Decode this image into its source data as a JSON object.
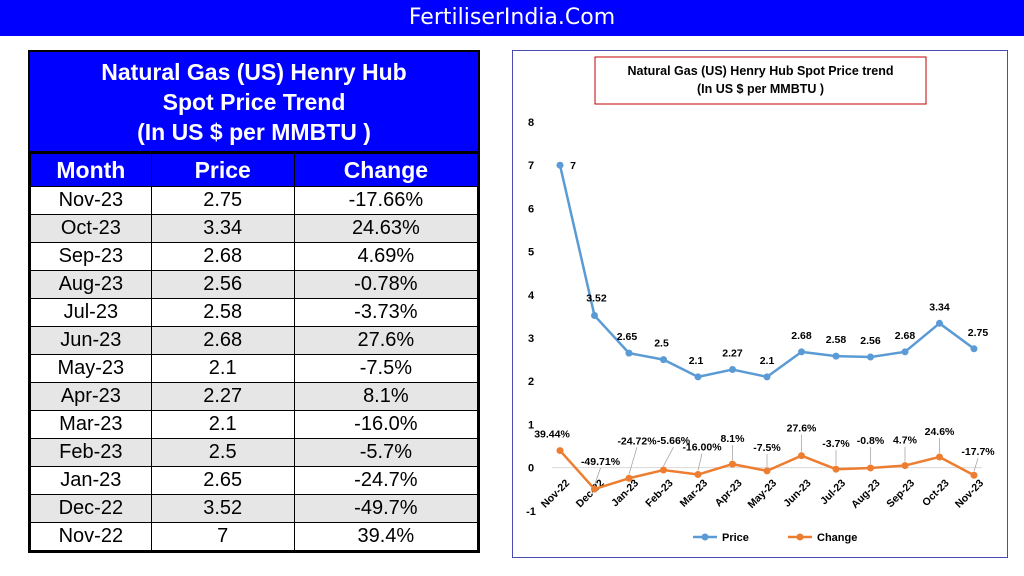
{
  "banner": {
    "text": "FertiliserIndia.Com"
  },
  "table": {
    "title_lines": [
      "Natural Gas (US) Henry Hub",
      "Spot Price Trend",
      "(In US $ per MMBTU )"
    ],
    "headers": [
      "Month",
      "Price",
      "Change"
    ],
    "rows": [
      [
        "Nov-23",
        "2.75",
        "-17.66%"
      ],
      [
        "Oct-23",
        "3.34",
        "24.63%"
      ],
      [
        "Sep-23",
        "2.68",
        "4.69%"
      ],
      [
        "Aug-23",
        "2.56",
        "-0.78%"
      ],
      [
        "Jul-23",
        "2.58",
        "-3.73%"
      ],
      [
        "Jun-23",
        "2.68",
        "27.6%"
      ],
      [
        "May-23",
        "2.1",
        "-7.5%"
      ],
      [
        "Apr-23",
        "2.27",
        "8.1%"
      ],
      [
        "Mar-23",
        "2.1",
        "-16.0%"
      ],
      [
        "Feb-23",
        "2.5",
        "-5.7%"
      ],
      [
        "Jan-23",
        "2.65",
        "-24.7%"
      ],
      [
        "Dec-22",
        "3.52",
        "-49.7%"
      ],
      [
        "Nov-22",
        "7",
        "39.4%"
      ]
    ]
  },
  "chart_data": {
    "type": "line",
    "title_lines": [
      "Natural Gas (US) Henry Hub Spot Price trend",
      "(In US $ per MMBTU )"
    ],
    "categories": [
      "Nov-22",
      "Dec-22",
      "Jan-23",
      "Feb-23",
      "Mar-23",
      "Apr-23",
      "May-23",
      "Jun-23",
      "Jul-23",
      "Aug-23",
      "Sep-23",
      "Oct-23",
      "Nov-23"
    ],
    "ylim": [
      -1,
      8
    ],
    "yticks": [
      "-1",
      "0",
      "1",
      "2",
      "3",
      "4",
      "5",
      "6",
      "7",
      "8"
    ],
    "grid": false,
    "legend_position": "bottom",
    "series": [
      {
        "name": "Price",
        "color": "#5b9bd5",
        "values": [
          7,
          3.52,
          2.65,
          2.5,
          2.1,
          2.27,
          2.1,
          2.68,
          2.58,
          2.56,
          2.68,
          3.34,
          2.75
        ],
        "labels": [
          "7",
          "3.52",
          "2.65",
          "2.5",
          "2.1",
          "2.27",
          "2.1",
          "2.68",
          "2.58",
          "2.56",
          "2.68",
          "3.34",
          "2.75"
        ]
      },
      {
        "name": "Change",
        "color": "#ed7d31",
        "values": [
          0.394,
          -0.497,
          -0.247,
          -0.057,
          -0.16,
          0.081,
          -0.075,
          0.276,
          -0.037,
          -0.008,
          0.047,
          0.246,
          -0.177
        ],
        "labels": [
          "39.44%",
          "-49.71%",
          "-24.72%",
          "-5.66%",
          "-16.00%",
          "8.1%",
          "-7.5%",
          "27.6%",
          "-3.7%",
          "-0.8%",
          "4.7%",
          "24.6%",
          "-17.7%"
        ]
      }
    ]
  }
}
